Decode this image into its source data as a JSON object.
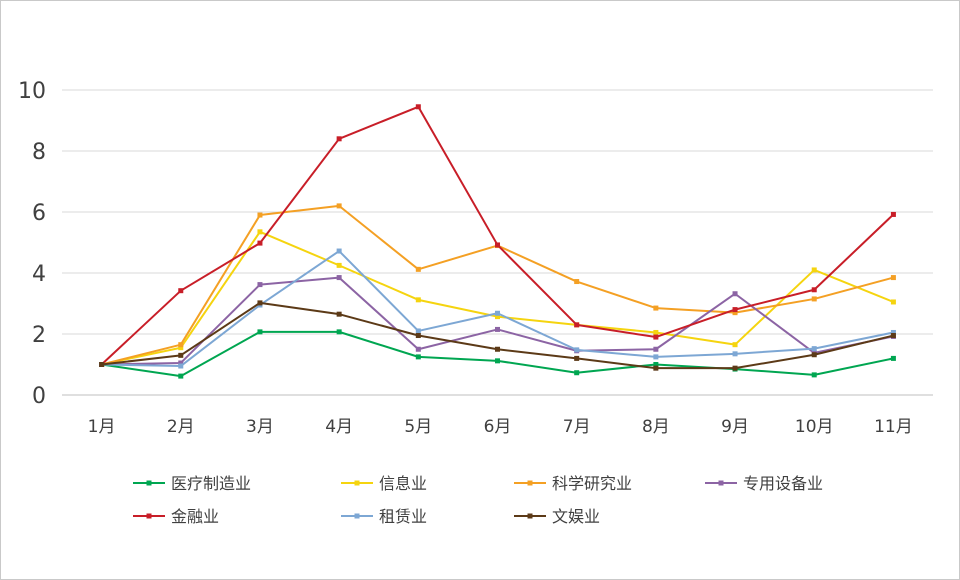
{
  "chart_data": {
    "type": "line",
    "title": "",
    "xlabel": "",
    "ylabel": "",
    "categories": [
      "1月",
      "2月",
      "3月",
      "4月",
      "5月",
      "6月",
      "7月",
      "8月",
      "9月",
      "10月",
      "11月"
    ],
    "ylim": [
      0,
      10
    ],
    "yticks": [
      0,
      2,
      4,
      6,
      8,
      10
    ],
    "grid": "horizontal",
    "legend_position": "bottom",
    "series": [
      {
        "name": "医疗制造业",
        "color": "#00a651",
        "values": [
          1.0,
          0.62,
          2.07,
          2.07,
          1.25,
          1.12,
          0.73,
          1.0,
          0.85,
          0.66,
          1.2
        ]
      },
      {
        "name": "信息业",
        "color": "#f5d40f",
        "values": [
          1.0,
          1.55,
          5.35,
          4.25,
          3.12,
          2.57,
          2.3,
          2.05,
          1.65,
          4.1,
          3.05
        ]
      },
      {
        "name": "科学研究业",
        "color": "#f4a024",
        "values": [
          1.0,
          1.65,
          5.9,
          6.2,
          4.12,
          4.9,
          3.72,
          2.85,
          2.7,
          3.15,
          3.85
        ]
      },
      {
        "name": "专用设备业",
        "color": "#8c64a4",
        "values": [
          1.0,
          1.05,
          3.62,
          3.85,
          1.5,
          2.15,
          1.45,
          1.5,
          3.32,
          1.38,
          1.92
        ]
      },
      {
        "name": "金融业",
        "color": "#c81e28",
        "values": [
          1.0,
          3.42,
          4.98,
          8.4,
          9.45,
          4.92,
          2.3,
          1.9,
          2.8,
          3.45,
          5.92
        ]
      },
      {
        "name": "租赁业",
        "color": "#7da7d4",
        "values": [
          1.0,
          0.95,
          2.95,
          4.72,
          2.1,
          2.68,
          1.48,
          1.25,
          1.35,
          1.52,
          2.05
        ]
      },
      {
        "name": "文娱业",
        "color": "#5c3a17",
        "values": [
          1.0,
          1.3,
          3.02,
          2.65,
          1.95,
          1.5,
          1.2,
          0.88,
          0.88,
          1.32,
          1.95
        ]
      }
    ]
  }
}
